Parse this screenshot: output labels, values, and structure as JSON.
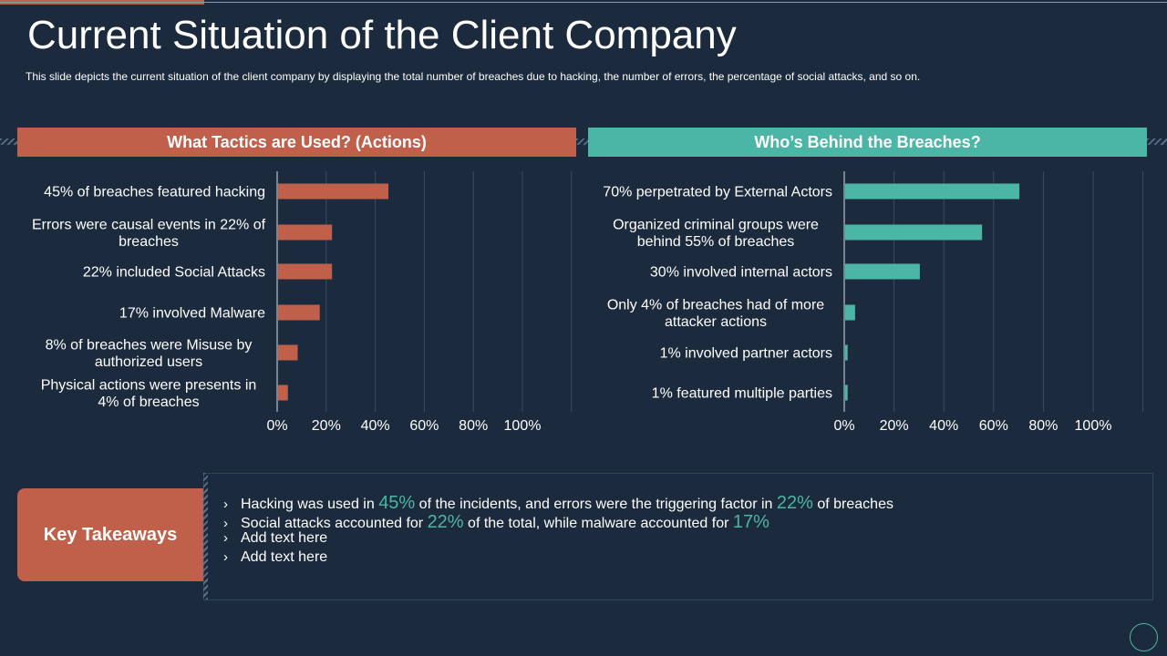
{
  "slide": {
    "title": "Current Situation of the Client Company",
    "subtitle": "This slide depicts the current situation of the client company by displaying the total number of breaches due to hacking, the number of errors,  the percentage of social attacks, and so on."
  },
  "colors": {
    "background": "#1b2a3c",
    "accent_orange": "#c0604a",
    "accent_teal": "#4bb6a6"
  },
  "chart_data": [
    {
      "type": "bar",
      "orientation": "horizontal",
      "title": "What Tactics are Used? (Actions)",
      "categories": [
        [
          "45% of breaches featured hacking"
        ],
        [
          "Errors were causal events in 22% of",
          "breaches"
        ],
        [
          "22% included Social Attacks"
        ],
        [
          "17% involved Malware"
        ],
        [
          "8% of breaches were Misuse by",
          "authorized users"
        ],
        [
          "Physical actions were presents in",
          "4% of breaches"
        ]
      ],
      "values": [
        45,
        22,
        22,
        17,
        8,
        4
      ],
      "xlim": [
        0,
        100
      ],
      "ticks": [
        "0%",
        "20%",
        "40%",
        "60%",
        "80%",
        "100%"
      ],
      "color": "#c0604a"
    },
    {
      "type": "bar",
      "orientation": "horizontal",
      "title": "Who’s Behind the Breaches?",
      "categories": [
        [
          "70% perpetrated by External Actors"
        ],
        [
          "Organized criminal groups were",
          "behind 55% of breaches"
        ],
        [
          "30% involved internal actors"
        ],
        [
          "Only 4% of breaches had of more",
          "attacker actions"
        ],
        [
          "1% involved partner actors"
        ],
        [
          "1% featured multiple parties"
        ]
      ],
      "values": [
        70,
        55,
        30,
        4,
        1,
        1
      ],
      "xlim": [
        0,
        100
      ],
      "ticks": [
        "0%",
        "20%",
        "40%",
        "60%",
        "80%",
        "100%"
      ],
      "color": "#4bb6a6"
    }
  ],
  "takeaways": {
    "label": "Key Takeaways",
    "bullet_mark": "›",
    "items": [
      {
        "parts": [
          {
            "text": "Hacking was used in ",
            "hl": false
          },
          {
            "text": "45%",
            "hl": true
          },
          {
            "text": " of the incidents, and errors were the triggering factor in ",
            "hl": false
          },
          {
            "text": "22%",
            "hl": true
          },
          {
            "text": " of breaches",
            "hl": false
          }
        ]
      },
      {
        "parts": [
          {
            "text": "Social attacks accounted for ",
            "hl": false
          },
          {
            "text": "22%",
            "hl": true
          },
          {
            "text": " of the total, while malware accounted for ",
            "hl": false
          },
          {
            "text": "17%",
            "hl": true
          }
        ]
      },
      {
        "parts": [
          {
            "text": "Add text here",
            "hl": false
          }
        ]
      },
      {
        "parts": [
          {
            "text": "Add text here",
            "hl": false
          }
        ]
      }
    ]
  }
}
